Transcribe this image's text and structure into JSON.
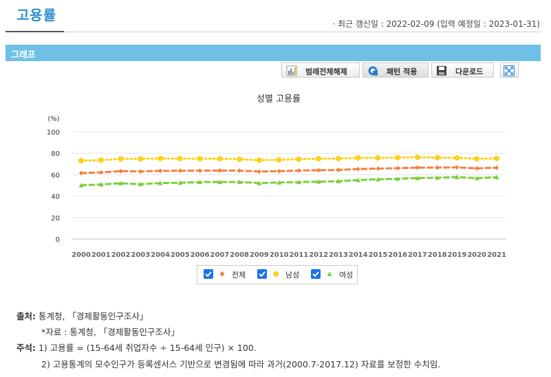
{
  "header": {
    "title": "고용률",
    "update_info": "· 최근 갱신일 : 2022-02-09 (입력 예정일 : 2023-01-31)"
  },
  "section": {
    "title": "그래프"
  },
  "toolbar": {
    "legend_toggle": "범례전체해제",
    "pattern": "패턴 적용",
    "download": "다운로드"
  },
  "chart_data": {
    "type": "line",
    "title": "성별 고용률",
    "ylabel": "(%)",
    "xlabel": "",
    "ylim": [
      0,
      100
    ],
    "yticks": [
      "0",
      "20",
      "40",
      "60",
      "80",
      "100"
    ],
    "grid": "horizontal",
    "legend_position": "bottom",
    "categories": [
      "2000",
      "2001",
      "2002",
      "2003",
      "2004",
      "2005",
      "2006",
      "2007",
      "2008",
      "2009",
      "2010",
      "2011",
      "2012",
      "2013",
      "2014",
      "2015",
      "2016",
      "2017",
      "2018",
      "2019",
      "2020",
      "2021"
    ],
    "series": [
      {
        "name": "전체",
        "color": "#f5803e",
        "style": "dashed",
        "marker": "diamond",
        "values": [
          61.5,
          62.1,
          63.3,
          63.0,
          63.6,
          63.7,
          63.8,
          63.9,
          63.8,
          62.9,
          63.3,
          63.8,
          64.2,
          64.4,
          65.3,
          65.7,
          66.1,
          66.6,
          66.6,
          66.8,
          65.9,
          66.5
        ]
      },
      {
        "name": "남성",
        "color": "#fcd21a",
        "style": "dotted",
        "marker": "circle",
        "values": [
          73.1,
          73.6,
          74.8,
          74.8,
          75.1,
          75.0,
          74.9,
          74.9,
          74.4,
          73.6,
          73.9,
          74.5,
          74.9,
          75.1,
          75.7,
          75.7,
          75.9,
          76.3,
          75.9,
          75.7,
          74.8,
          75.2
        ]
      },
      {
        "name": "여성",
        "color": "#7ccf3c",
        "style": "dashed",
        "marker": "triangle",
        "values": [
          50.1,
          50.9,
          52.0,
          51.1,
          52.2,
          52.5,
          53.1,
          53.2,
          53.2,
          52.2,
          52.7,
          53.1,
          53.5,
          53.9,
          55.0,
          55.7,
          56.2,
          56.9,
          57.2,
          57.8,
          56.7,
          57.7
        ]
      }
    ]
  },
  "notes": {
    "source_label": "출처:",
    "source_text": "통계청, 「경제활동인구조사」",
    "source_sub": "*자료 : 통계청, 「경제활동인구조사」",
    "note_label": "주석:",
    "note_1": "1) 고용률 = (15-64세 취업자수 ÷ 15-64세 인구) × 100.",
    "note_2": "2) 고용통계의 모수인구가 등록센서스 기반으로 변경됨에 따라 과거(2000.7-2017.12) 자료를 보정한 수치임."
  }
}
